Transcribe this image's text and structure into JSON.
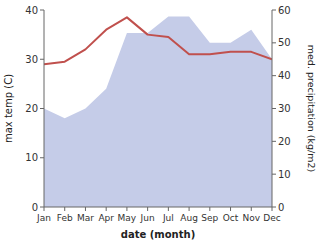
{
  "chart_data": {
    "type": "line",
    "categories": [
      "Jan",
      "Feb",
      "Mar",
      "Apr",
      "May",
      "Jun",
      "Jul",
      "Aug",
      "Sep",
      "Oct",
      "Nov",
      "Dec"
    ],
    "series": [
      {
        "type": "area",
        "axis": "y2",
        "color": "#c5cce8",
        "values": [
          30,
          27,
          30,
          36,
          53,
          53,
          58,
          58,
          50,
          50,
          54,
          45
        ]
      },
      {
        "type": "line",
        "color": "#c0504d",
        "values": [
          29,
          29.5,
          32,
          36,
          38.5,
          35,
          34.5,
          31,
          31,
          31.5,
          31.5,
          30
        ]
      }
    ],
    "xlabel": "date (month)",
    "ylabel": "max temp (C)",
    "y2label": "med. precipitation (kg/m2)",
    "ylim": [
      0,
      40
    ],
    "yticks": [
      0,
      10,
      20,
      30,
      40
    ],
    "y2lim": [
      0,
      60
    ],
    "y2ticks": [
      0,
      10,
      20,
      30,
      40,
      50,
      60
    ],
    "grid": false
  }
}
